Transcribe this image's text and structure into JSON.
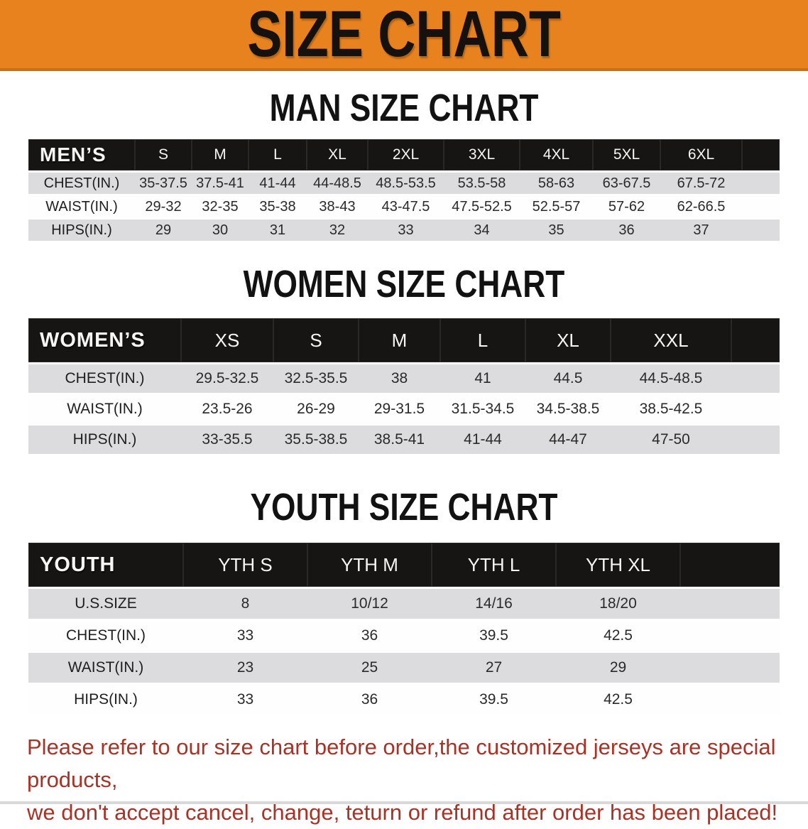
{
  "banner": {
    "title": "SIZE CHART"
  },
  "colors": {
    "banner_bg": "#E8821E",
    "banner_edge": "#CE6E11",
    "table_header_bg": "#171513",
    "row_gray": "#DCDCDE",
    "row_white": "#FEFEFE",
    "disclaimer_red": "#A93226"
  },
  "sections": [
    {
      "title": "MAN SIZE CHART",
      "group_label": "MEN’S",
      "sizes": [
        "S",
        "M",
        "L",
        "XL",
        "2XL",
        "3XL",
        "4XL",
        "5XL",
        "6XL"
      ],
      "rows": [
        {
          "label": "CHEST(IN.)",
          "values": [
            "35-37.5",
            "37.5-41",
            "41-44",
            "44-48.5",
            "48.5-53.5",
            "53.5-58",
            "58-63",
            "63-67.5",
            "67.5-72"
          ]
        },
        {
          "label": "WAIST(IN.)",
          "values": [
            "29-32",
            "32-35",
            "35-38",
            "38-43",
            "43-47.5",
            "47.5-52.5",
            "52.5-57",
            "57-62",
            "62-66.5"
          ]
        },
        {
          "label": "HIPS(IN.)",
          "values": [
            "29",
            "30",
            "31",
            "32",
            "33",
            "34",
            "35",
            "36",
            "37"
          ]
        }
      ]
    },
    {
      "title": "WOMEN SIZE CHART",
      "group_label": "WOMEN’S",
      "sizes": [
        "XS",
        "S",
        "M",
        "L",
        "XL",
        "XXL"
      ],
      "rows": [
        {
          "label": "CHEST(IN.)",
          "values": [
            "29.5-32.5",
            "32.5-35.5",
            "38",
            "41",
            "44.5",
            "44.5-48.5"
          ]
        },
        {
          "label": "WAIST(IN.)",
          "values": [
            "23.5-26",
            "26-29",
            "29-31.5",
            "31.5-34.5",
            "34.5-38.5",
            "38.5-42.5"
          ]
        },
        {
          "label": "HIPS(IN.)",
          "values": [
            "33-35.5",
            "35.5-38.5",
            "38.5-41",
            "41-44",
            "44-47",
            "47-50"
          ]
        }
      ]
    },
    {
      "title": "YOUTH SIZE CHART",
      "group_label": "YOUTH",
      "sizes": [
        "YTH S",
        "YTH M",
        "YTH L",
        "YTH XL"
      ],
      "rows": [
        {
          "label": "U.S.SIZE",
          "values": [
            "8",
            "10/12",
            "14/16",
            "18/20"
          ]
        },
        {
          "label": "CHEST(IN.)",
          "values": [
            "33",
            "36",
            "39.5",
            "42.5"
          ]
        },
        {
          "label": "WAIST(IN.)",
          "values": [
            "23",
            "25",
            "27",
            "29"
          ]
        },
        {
          "label": "HIPS(IN.)",
          "values": [
            "33",
            "36",
            "39.5",
            "42.5"
          ]
        }
      ]
    }
  ],
  "disclaimer": {
    "line1": "Please refer to our size chart before order,the customized jerseys are special products,",
    "line2": "we don't accept cancel, change, teturn or refund after order has been placed!"
  }
}
